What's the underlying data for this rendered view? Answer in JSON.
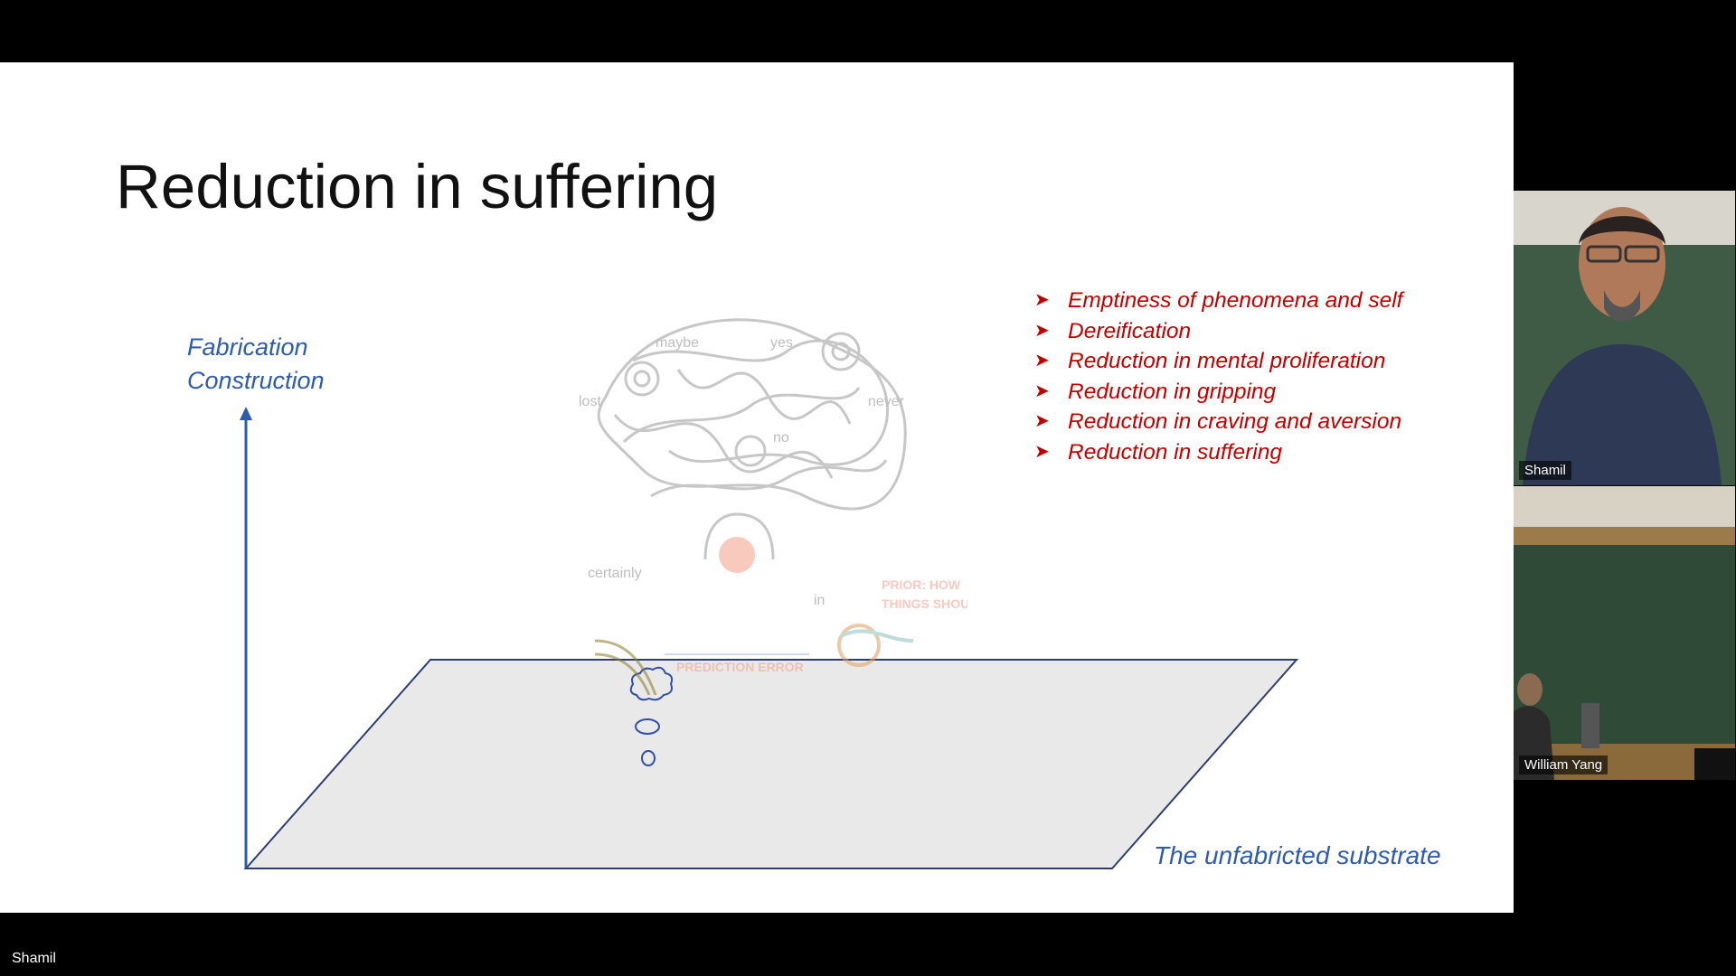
{
  "slide": {
    "title": "Reduction in suffering",
    "y_axis_labels": [
      "Fabrication",
      "Construction"
    ],
    "x_axis_label": "The unfabricted substrate",
    "bullets": [
      "Emptiness of phenomena and self",
      "Dereification",
      "Reduction in mental proliferation",
      "Reduction in gripping",
      "Reduction in craving and aversion",
      "Reduction in suffering"
    ],
    "illustration": {
      "words": [
        "maybe",
        "yes",
        "lost",
        "no",
        "never",
        "certainly",
        "in"
      ],
      "prior_label_line1": "PRIOR: HOW",
      "prior_label_line2": "THINGS SHOULD BE",
      "error_label": "PREDICTION ERROR"
    },
    "colors": {
      "axis": "#2f5caa",
      "bullets": "#c00000",
      "plane_fill": "#e9e9e9",
      "plane_stroke": "#2e3e6e"
    }
  },
  "participants": [
    {
      "name": "Shamil"
    },
    {
      "name": "William Yang"
    }
  ],
  "footer": {
    "active_speaker": "Shamil"
  }
}
